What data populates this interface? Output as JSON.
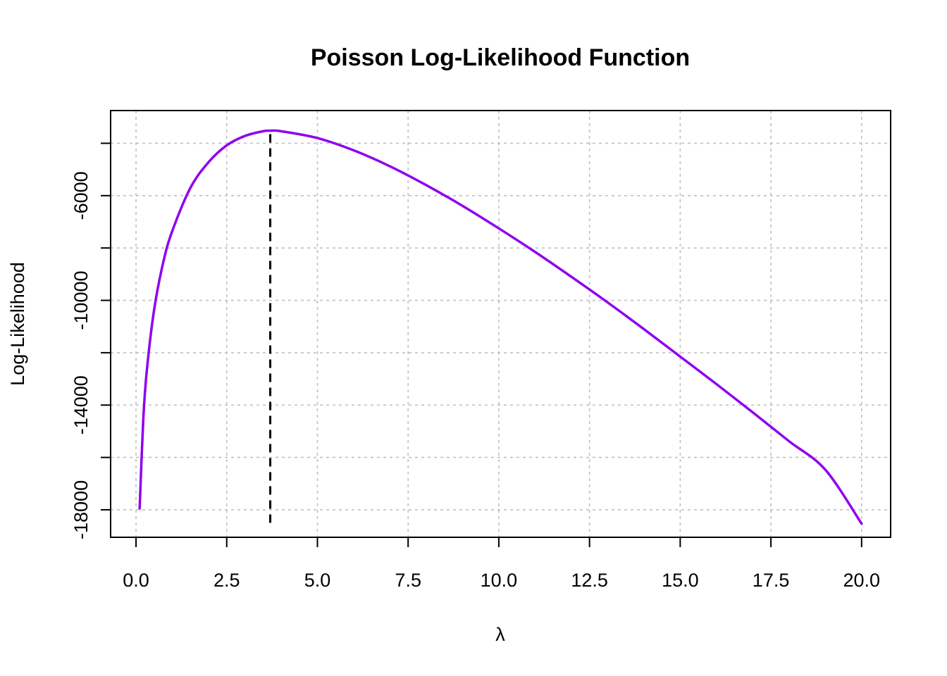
{
  "colors": {
    "curve": "#8f00f0",
    "mle_line": "#000000",
    "grid": "#c0c0c0",
    "frame": "#000000"
  },
  "chart_data": {
    "type": "line",
    "title": "Poisson Log-Likelihood Function",
    "xlabel": "λ",
    "ylabel": "Log-Likelihood",
    "xlim": [
      -0.7,
      20.8
    ],
    "ylim": [
      -19050,
      -2750
    ],
    "x_ticks": [
      0,
      2.5,
      5,
      7.5,
      10,
      12.5,
      15,
      17.5,
      20
    ],
    "x_tick_labels": [
      "0.0",
      "2.5",
      "5.0",
      "7.5",
      "10.0",
      "12.5",
      "15.0",
      "17.5",
      "20.0"
    ],
    "y_ticks": [
      -18000,
      -16000,
      -14000,
      -12000,
      -10000,
      -8000,
      -6000,
      -4000
    ],
    "y_tick_labels": [
      "-18000",
      "",
      "-14000",
      "",
      "-10000",
      "",
      "-6000",
      ""
    ],
    "grid": true,
    "series": [
      {
        "x": [
          0.1,
          0.2,
          0.3,
          0.5,
          0.75,
          1.0,
          1.5,
          2.0,
          2.5,
          3.0,
          3.5,
          3.7,
          4.0,
          5.0,
          6.0,
          7.0,
          8.0,
          9.0,
          10.0,
          11.0,
          12.0,
          13.0,
          14.0,
          15.0,
          16.0,
          17.0,
          18.0,
          19.0,
          20.0
        ],
        "values": [
          -17950,
          -14550,
          -12650,
          -10350,
          -8550,
          -7350,
          -5700,
          -4720,
          -4080,
          -3720,
          -3540,
          -3520,
          -3540,
          -3800,
          -4270,
          -4880,
          -5600,
          -6390,
          -7250,
          -8150,
          -9100,
          -10080,
          -11100,
          -12150,
          -13200,
          -14280,
          -15380,
          -16470,
          -18530
        ]
      }
    ],
    "mle_line": {
      "x": 3.7,
      "y_from": -18500,
      "y_to": -3520
    }
  }
}
